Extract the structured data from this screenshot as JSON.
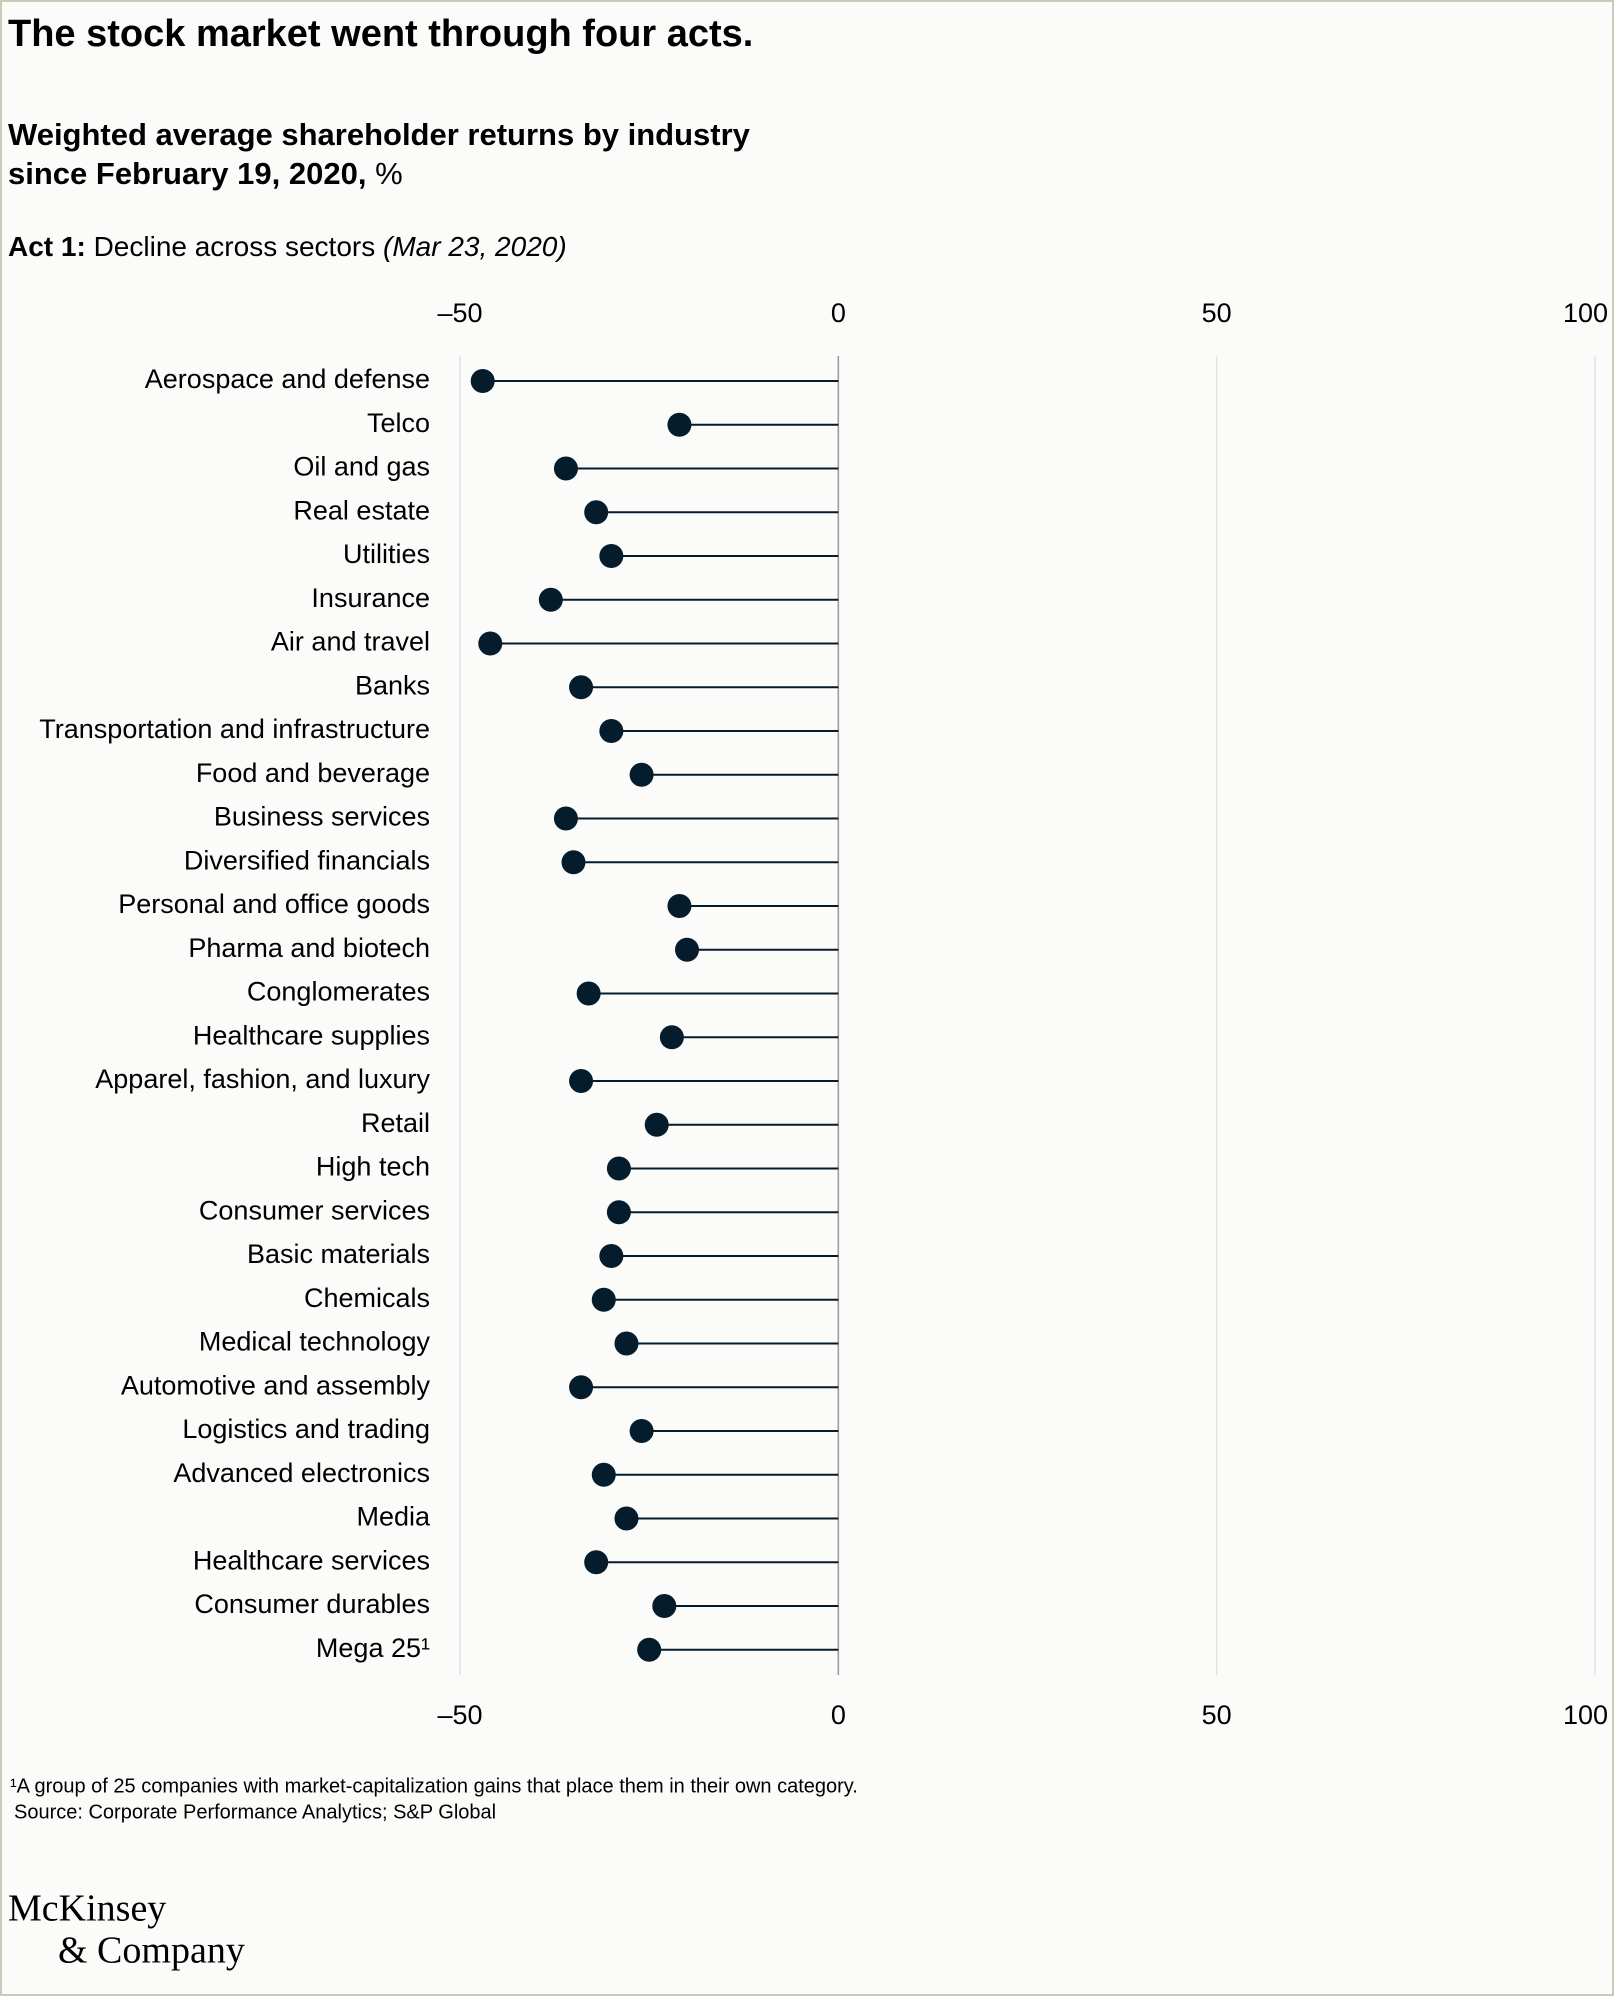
{
  "chart_data": {
    "type": "lollipop",
    "title": "The stock market went through four acts.",
    "subtitle_line1": "Weighted average shareholder returns by industry",
    "subtitle_line2": "since February 19, 2020,",
    "subtitle_unit": "%",
    "act_label": "Act 1:",
    "act_text": "Decline across sectors",
    "act_date": "(Mar 23, 2020)",
    "categories": [
      "Aerospace and defense",
      "Telco",
      "Oil and gas",
      "Real estate",
      "Utilities",
      "Insurance",
      "Air and travel",
      "Banks",
      "Transportation and infrastructure",
      "Food and beverage",
      "Business services",
      "Diversified financials",
      "Personal and office goods",
      "Pharma and biotech",
      "Conglomerates",
      "Healthcare supplies",
      "Apparel, fashion, and luxury",
      "Retail",
      "High tech",
      "Consumer services",
      "Basic materials",
      "Chemicals",
      "Medical technology",
      "Automotive and assembly",
      "Logistics and trading",
      "Advanced electronics",
      "Media",
      "Healthcare services",
      "Consumer durables",
      "Mega 25¹"
    ],
    "values": [
      -47,
      -21,
      -36,
      -32,
      -30,
      -38,
      -46,
      -34,
      -30,
      -26,
      -36,
      -35,
      -21,
      -20,
      -33,
      -22,
      -34,
      -24,
      -29,
      -29,
      -30,
      -31,
      -28,
      -34,
      -26,
      -31,
      -28,
      -32,
      -23,
      -25
    ],
    "color": "#051c2c",
    "xlim": [
      -50,
      100
    ],
    "xticks": [
      {
        "value": -50,
        "label": "–50"
      },
      0,
      50,
      100
    ],
    "grid": true,
    "footnote": "¹A group of 25 companies with market-capitalization gains that place them in their own category.",
    "source": "Source: Corporate Performance Analytics; S&P Global",
    "logo_line1": "McKinsey",
    "logo_line2": "& Company"
  }
}
